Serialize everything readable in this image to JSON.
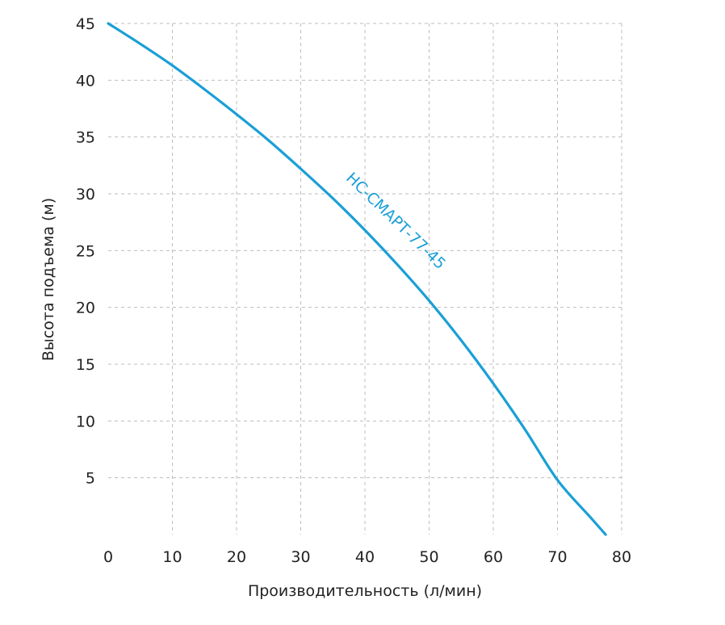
{
  "chart_data": {
    "type": "line",
    "xlabel": "Производительность (л/мин)",
    "ylabel": "Высота подъема (м)",
    "xlim": [
      0,
      80
    ],
    "ylim": [
      0,
      45
    ],
    "xticks": [
      "0",
      "10",
      "20",
      "30",
      "40",
      "50",
      "60",
      "70",
      "80"
    ],
    "yticks": [
      "5",
      "10",
      "15",
      "20",
      "25",
      "30",
      "35",
      "40",
      "45"
    ],
    "grid": true,
    "series": [
      {
        "name": "НС-СМАРТ-77-45",
        "color": "#1a9fd6",
        "x": [
          0,
          5,
          10,
          15,
          20,
          25,
          30,
          35,
          40,
          45,
          50,
          55,
          60,
          65,
          70,
          75,
          77.5
        ],
        "y": [
          45,
          43.2,
          41.3,
          39.2,
          37.0,
          34.7,
          32.2,
          29.6,
          26.8,
          23.8,
          20.6,
          17.1,
          13.3,
          9.2,
          4.8,
          1.6,
          0
        ]
      }
    ]
  }
}
